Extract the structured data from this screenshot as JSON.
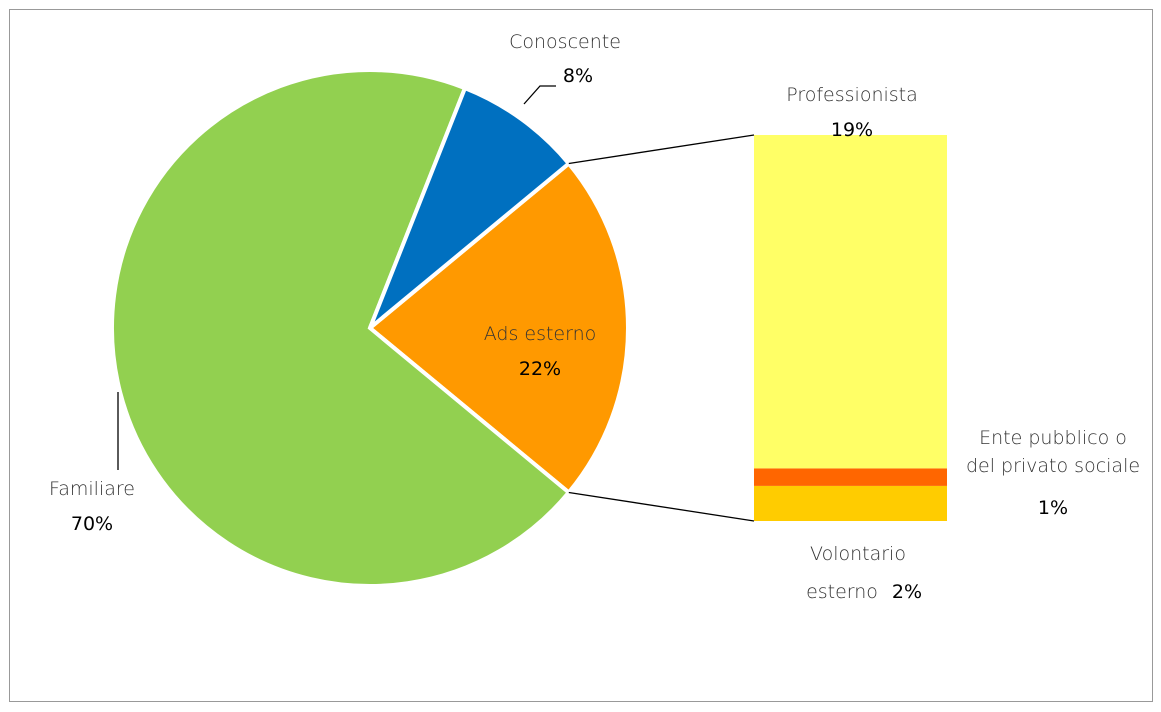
{
  "chart_data": {
    "type": "pie-of-bar",
    "pie": {
      "categories": [
        "Familiare",
        "Conoscente",
        "Ads esterno"
      ],
      "values": [
        70,
        8,
        22
      ],
      "value_labels": [
        "70%",
        "8%",
        "22%"
      ],
      "colors": [
        "#92d050",
        "#0070c0",
        "#ff9900"
      ]
    },
    "breakdown": {
      "categories": [
        "Professionista",
        "Ente pubblico o del privato sociale",
        "Volontario esterno"
      ],
      "values": [
        19,
        1,
        2
      ],
      "value_labels": [
        "19%",
        "1%",
        "2%"
      ],
      "colors": [
        "#ffff66",
        "#ff6600",
        "#ffcc00"
      ]
    }
  }
}
